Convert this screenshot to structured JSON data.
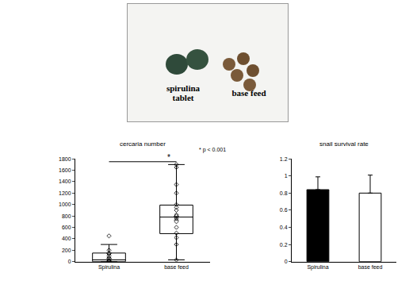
{
  "photo": {
    "labels": [
      "spirulina tablet",
      "base feed"
    ]
  },
  "chart_data": [
    {
      "type": "box",
      "title": "cercaria number",
      "categories": [
        "Spirulina",
        "base feed"
      ],
      "lower": [
        0,
        30
      ],
      "q1": [
        0,
        490
      ],
      "median": [
        30,
        780
      ],
      "q3": [
        150,
        990
      ],
      "upper": [
        300,
        1700
      ],
      "mean": [
        100,
        760
      ],
      "points": [
        [
          0,
          0,
          10,
          20,
          40,
          60,
          100,
          150,
          200,
          450
        ],
        [
          30,
          300,
          420,
          500,
          600,
          700,
          760,
          800,
          820,
          900,
          950,
          1000,
          1200,
          1350,
          1650,
          1700
        ]
      ],
      "color": "#000000",
      "ylim": [
        0,
        1800
      ],
      "yticks": [
        0,
        200,
        400,
        600,
        800,
        1000,
        1200,
        1400,
        1600,
        1800
      ],
      "significance": {
        "from": "Spirulina",
        "to": "base feed",
        "y": 1750
      },
      "annotations": [
        {
          "text": "*",
          "x": "base feed",
          "y": 1720
        },
        {
          "text": "* p < 0.001"
        }
      ]
    },
    {
      "type": "bar",
      "title": "snail survival rate",
      "categories": [
        "Spirulina",
        "base feed"
      ],
      "values": [
        0.84,
        0.8
      ],
      "errors": [
        0.15,
        0.21
      ],
      "colors": [
        "#000000",
        "#ffffff"
      ],
      "ylim": [
        0,
        1.2
      ],
      "yticks": [
        0,
        0.2,
        0.4,
        0.6,
        0.8,
        1,
        1.2
      ]
    }
  ]
}
